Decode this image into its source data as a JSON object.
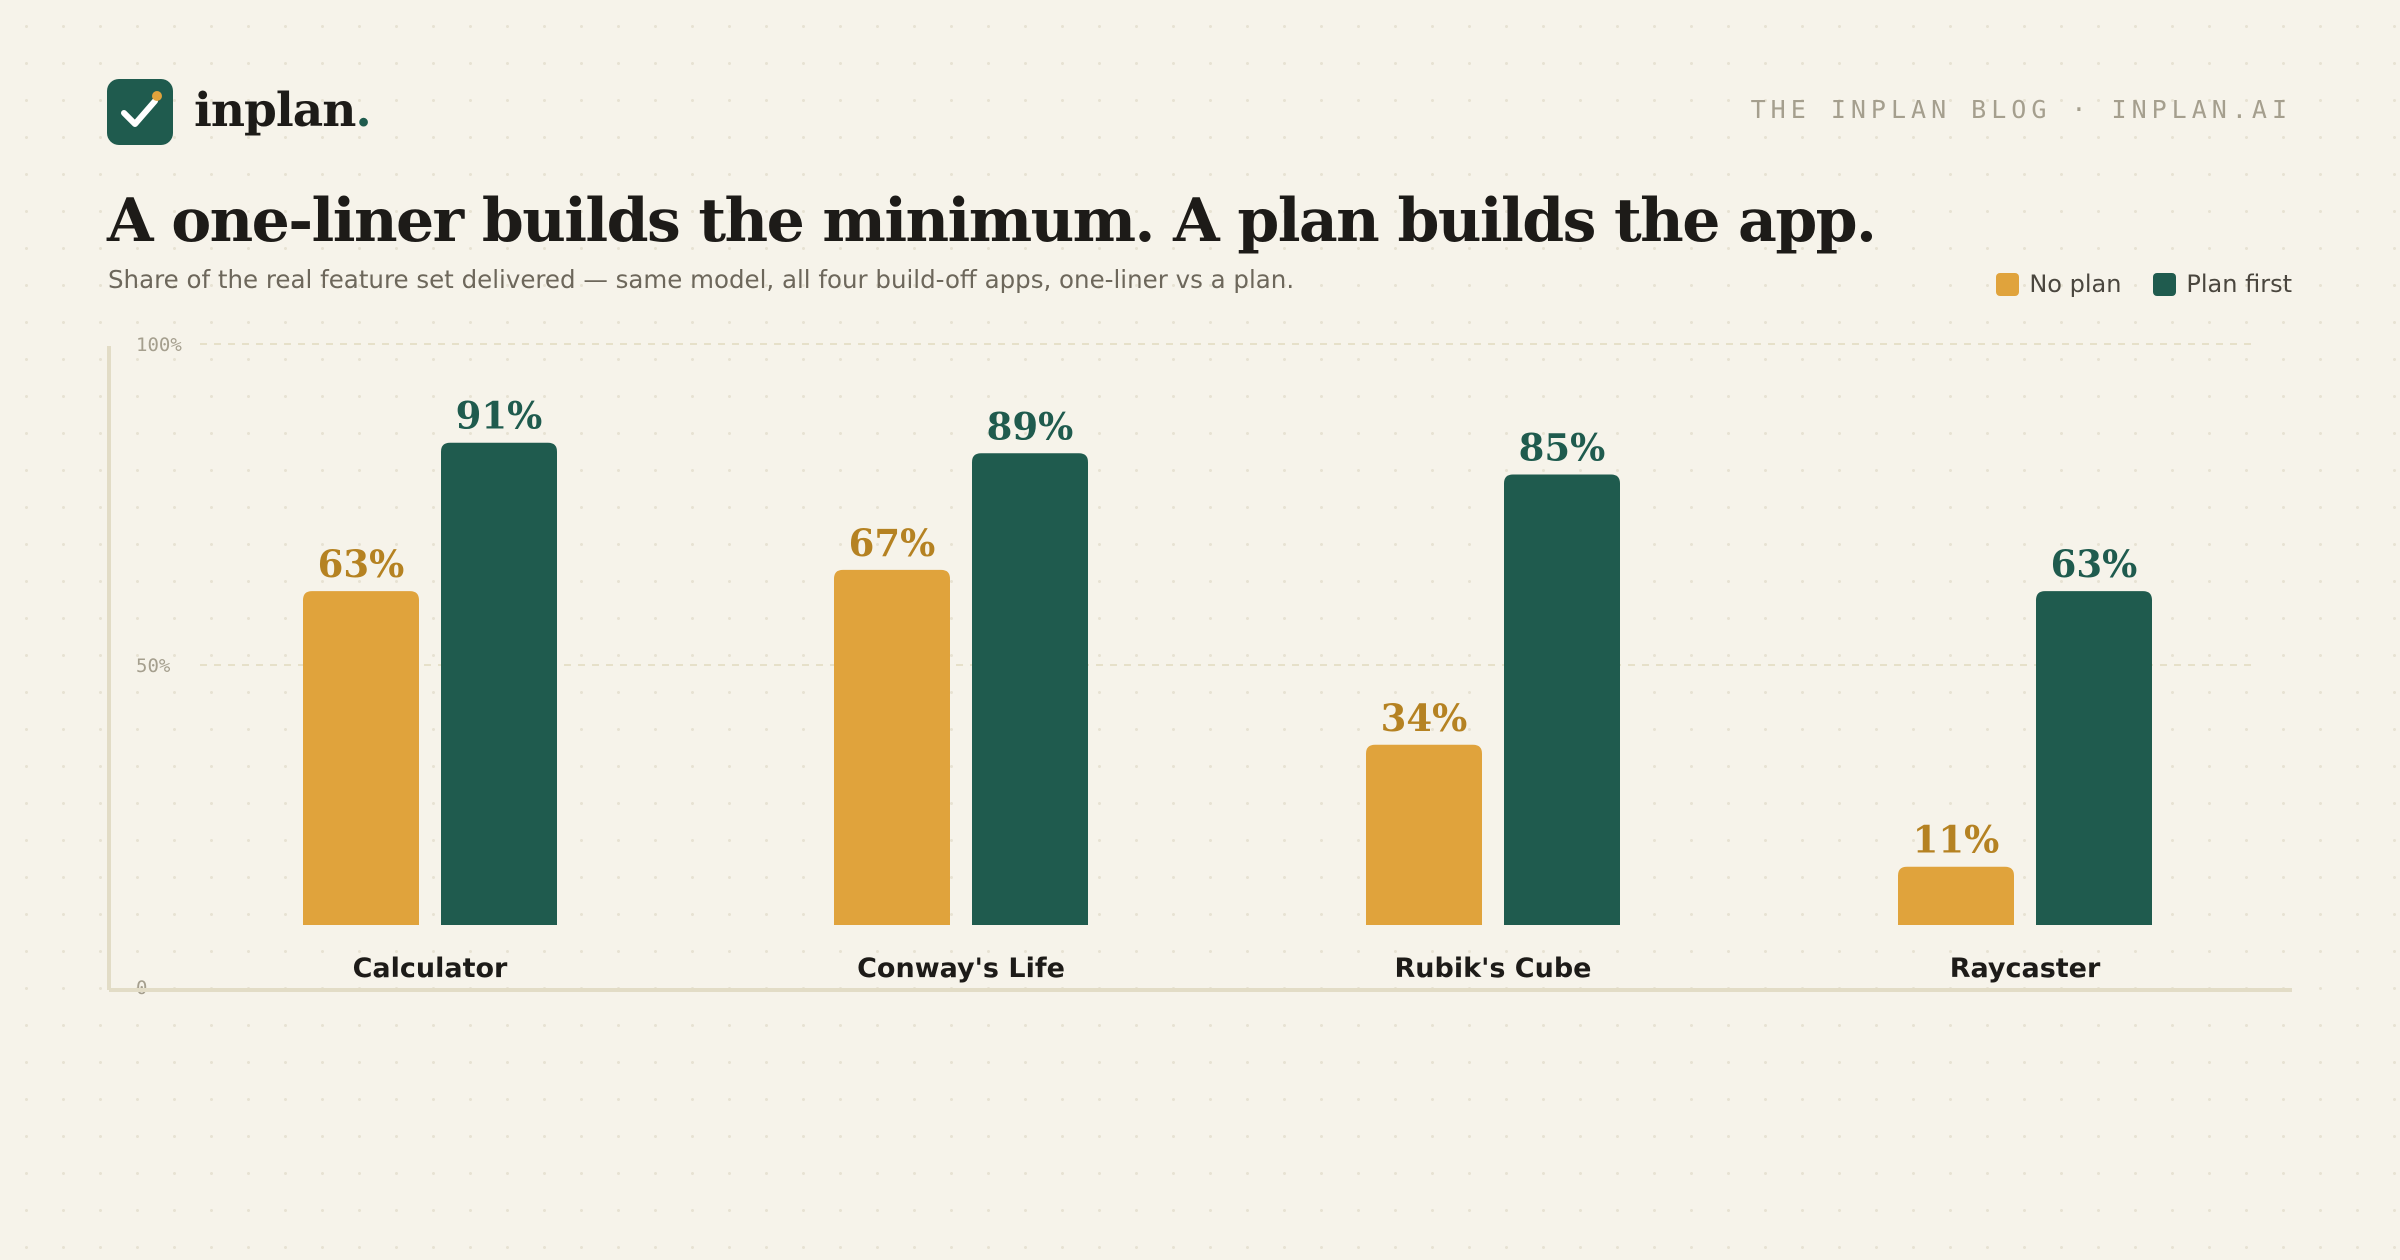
{
  "brand": {
    "name": "inplan",
    "dot": ".",
    "logo_icon": "checkmark-icon"
  },
  "blog_tag": "THE INPLAN BLOG · INPLAN.AI",
  "title": "A one-liner builds the minimum. A plan builds the app.",
  "subtitle": "Share of the real feature set delivered — same model, all four build-off apps, one-liner vs a plan.",
  "colors": {
    "no_plan": "#e0a33c",
    "plan_first": "#1f5b4e",
    "no_plan_label": "#b58222",
    "background": "#f6f3ea"
  },
  "chart_data": {
    "type": "bar",
    "categories": [
      "Calculator",
      "Conway's Life",
      "Rubik's Cube",
      "Raycaster"
    ],
    "series": [
      {
        "name": "No plan",
        "values": [
          63,
          67,
          34,
          11
        ]
      },
      {
        "name": "Plan first",
        "values": [
          91,
          89,
          85,
          63
        ]
      }
    ],
    "value_labels": [
      [
        "63%",
        "67%",
        "34%",
        "11%"
      ],
      [
        "91%",
        "89%",
        "85%",
        "63%"
      ]
    ],
    "ylim": [
      0,
      100
    ],
    "y_ticks": [
      {
        "value": 100,
        "label": "100%"
      },
      {
        "value": 50,
        "label": "50%"
      },
      {
        "value": 0,
        "label": "0"
      }
    ],
    "grid": true,
    "legend": "top-right"
  }
}
